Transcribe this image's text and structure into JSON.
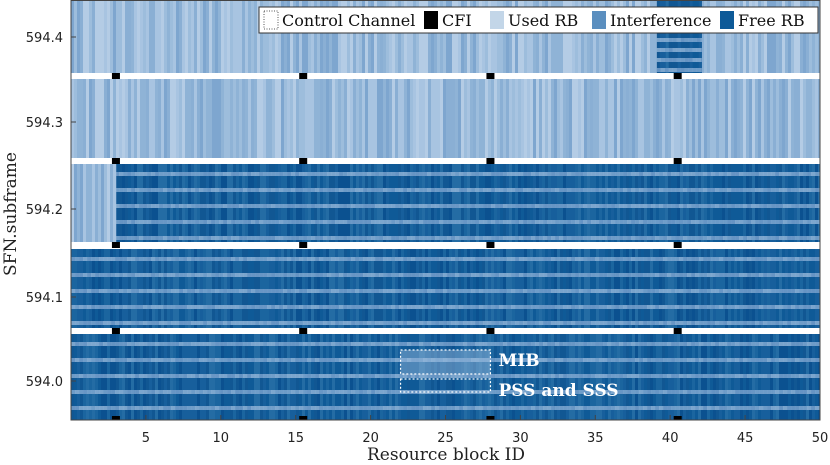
{
  "chart_data": {
    "type": "heatmap",
    "xlabel": "Resource block ID",
    "ylabel": "SFN.subframe",
    "xlim": [
      0,
      50
    ],
    "x_ticks": [
      5,
      10,
      15,
      20,
      25,
      30,
      35,
      40,
      45,
      50
    ],
    "y_ticks": [
      "594.4",
      "594.3",
      "594.2",
      "594.1",
      "594.0"
    ],
    "legend": {
      "placement": "top-right",
      "entries": [
        {
          "label": "Control Channel",
          "color": "#ffffff"
        },
        {
          "label": "CFI",
          "color": "#000000"
        },
        {
          "label": "Used RB",
          "color": "#c3d6e8"
        },
        {
          "label": "Interference",
          "color": "#5b8fbf"
        },
        {
          "label": "Free RB",
          "color": "#0d5a98"
        }
      ]
    },
    "subframes": [
      {
        "label": "594.4",
        "base": "interference",
        "interference_block": [
          39.1,
          42.1
        ]
      },
      {
        "label": "594.3",
        "base": "interference"
      },
      {
        "label": "594.2",
        "base": "free",
        "interference_block": [
          0,
          3
        ]
      },
      {
        "label": "594.1",
        "base": "free"
      },
      {
        "label": "594.0",
        "base": "free",
        "annotations": [
          {
            "label": "MIB",
            "x_range": [
              22,
              28
            ]
          },
          {
            "label": "PSS and SSS",
            "x_range": [
              22,
              28
            ]
          }
        ]
      }
    ],
    "cfi_markers_x": [
      3,
      15.5,
      28,
      40.5
    ]
  }
}
